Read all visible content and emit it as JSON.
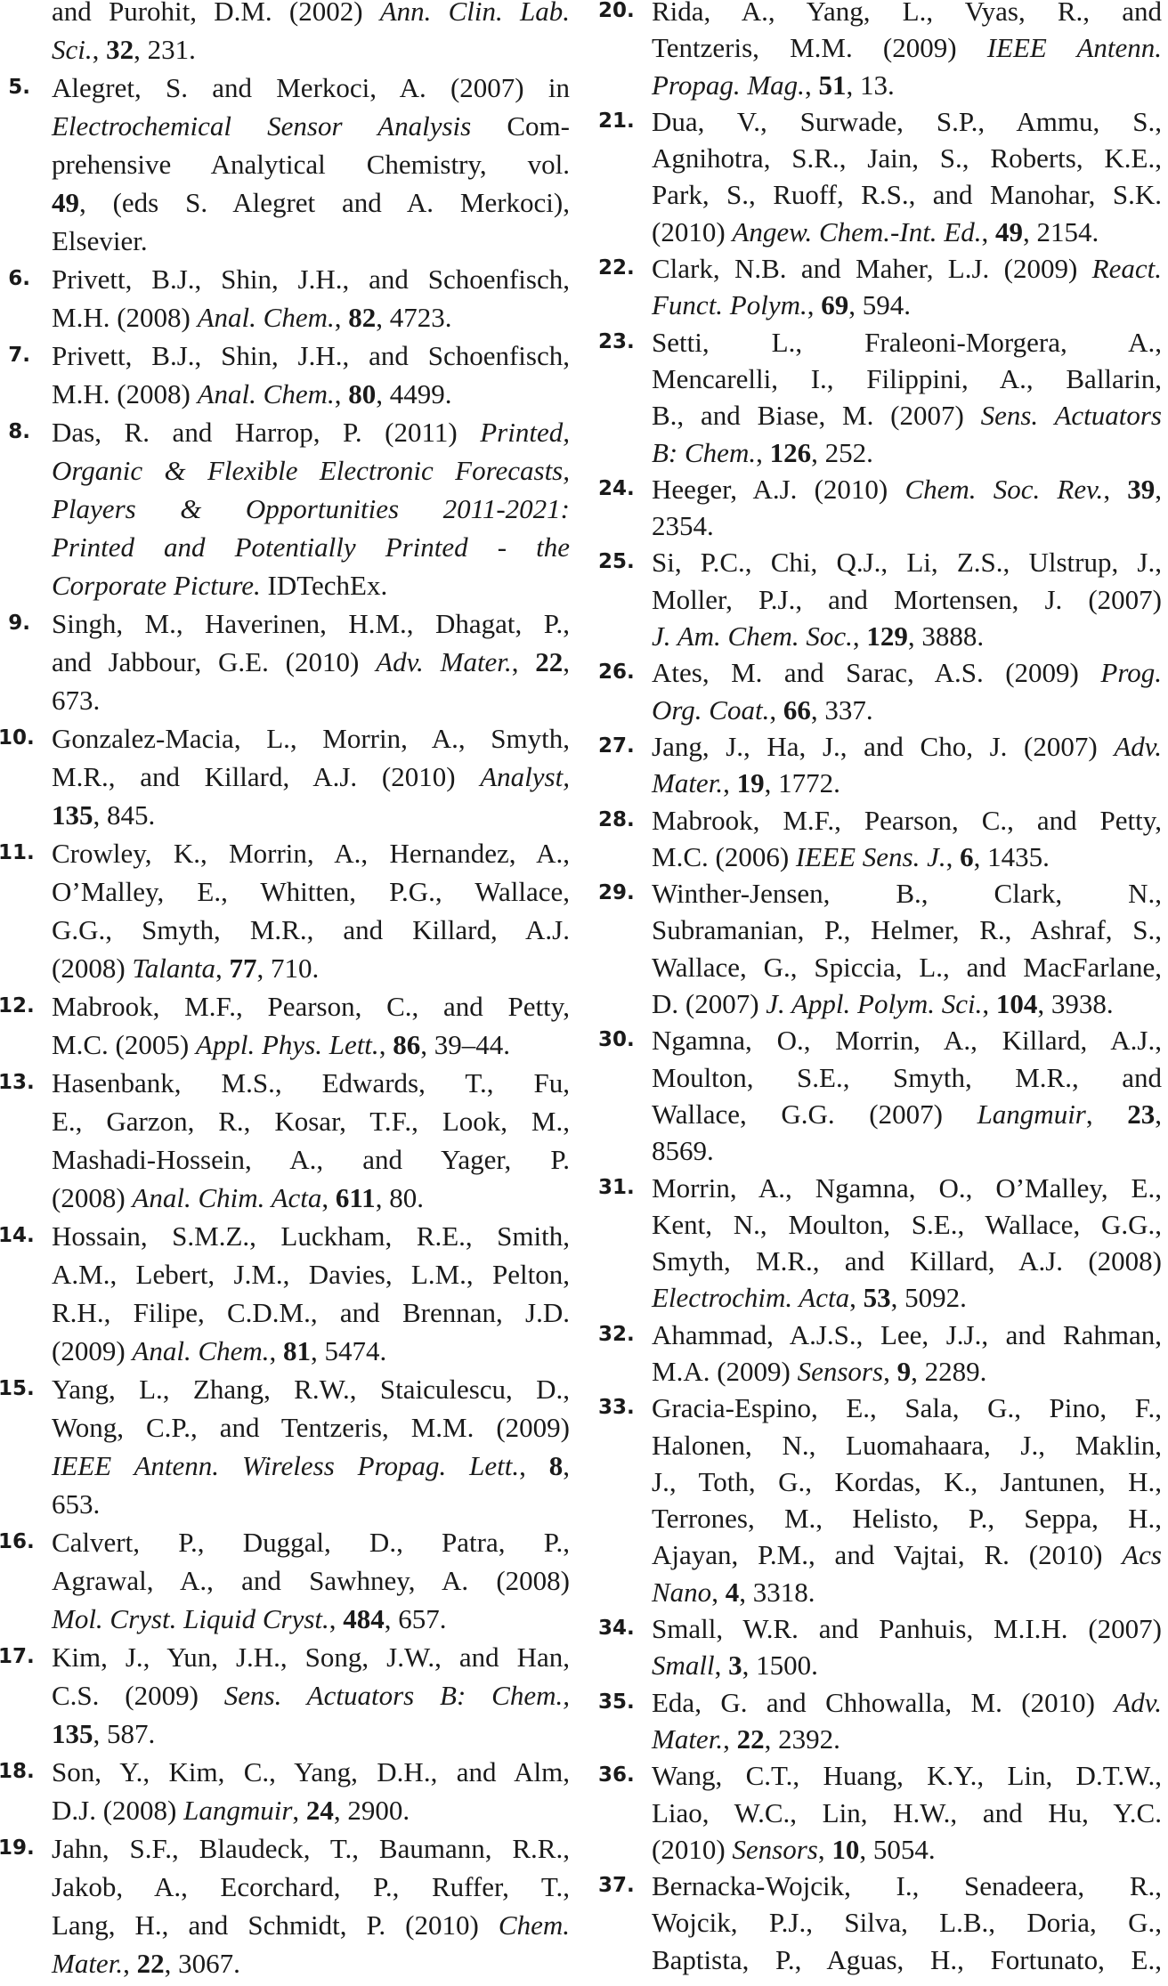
{
  "columns": [
    {
      "refs": [
        {
          "num": "",
          "lines": [
            [
              "and Purohit, D.M. (2002) ",
              [
                "Ann. Clin. Lab.",
                "i"
              ]
            ],
            [
              [
                "Sci.",
                "i"
              ],
              ", ",
              [
                "32",
                "b"
              ],
              ", 231."
            ]
          ]
        },
        {
          "num": "5.",
          "lines": [
            [
              "Alegret, S. and Merkoci, A. (2007) in"
            ],
            [
              [
                "Electrochemical Sensor Analysis",
                "i"
              ],
              " Com-"
            ],
            [
              "prehensive Analytical Chemistry, vol."
            ],
            [
              [
                "49",
                "b"
              ],
              ", (eds S. Alegret and A. Merkoci),"
            ],
            [
              "Elsevier."
            ]
          ]
        },
        {
          "num": "6.",
          "lines": [
            [
              "Privett, B.J., Shin, J.H., and Schoenfisch,"
            ],
            [
              "M.H. (2008) ",
              [
                "Anal. Chem.",
                "i"
              ],
              ", ",
              [
                "82",
                "b"
              ],
              ", 4723."
            ]
          ]
        },
        {
          "num": "7.",
          "lines": [
            [
              "Privett, B.J., Shin, J.H., and Schoenfisch,"
            ],
            [
              "M.H. (2008) ",
              [
                "Anal. Chem.",
                "i"
              ],
              ", ",
              [
                "80",
                "b"
              ],
              ", 4499."
            ]
          ]
        },
        {
          "num": "8.",
          "lines": [
            [
              "Das, R. and Harrop, P. (2011) ",
              [
                "Printed,",
                "i"
              ]
            ],
            [
              [
                "Organic & Flexible Electronic Forecasts,",
                "i"
              ]
            ],
            [
              [
                "Players & Opportunities 2011-2021:",
                "i"
              ]
            ],
            [
              [
                "Printed and Potentially Printed - the",
                "i"
              ]
            ],
            [
              [
                "Corporate Picture.",
                "i"
              ],
              " IDTechEx."
            ]
          ]
        },
        {
          "num": "9.",
          "lines": [
            [
              "Singh, M., Haverinen, H.M., Dhagat, P.,"
            ],
            [
              "and Jabbour, G.E. (2010) ",
              [
                "Adv. Mater.",
                "i"
              ],
              ", ",
              [
                "22",
                "b"
              ],
              ","
            ],
            [
              "673."
            ]
          ]
        },
        {
          "num": "10.",
          "lines": [
            [
              "Gonzalez-Macia, L., Morrin, A., Smyth,"
            ],
            [
              "M.R., and Killard, A.J. (2010) ",
              [
                "Analyst,",
                "i"
              ]
            ],
            [
              [
                "135",
                "b"
              ],
              ", 845."
            ]
          ]
        },
        {
          "num": "11.",
          "lines": [
            [
              "Crowley, K., Morrin, A., Hernandez, A.,"
            ],
            [
              "O’Malley, E., Whitten, P.G., Wallace,"
            ],
            [
              "G.G., Smyth, M.R., and Killard, A.J."
            ],
            [
              "(2008) ",
              [
                "Talanta",
                "i"
              ],
              ", ",
              [
                "77",
                "b"
              ],
              ", 710."
            ]
          ]
        },
        {
          "num": "12.",
          "lines": [
            [
              "Mabrook, M.F., Pearson, C., and Petty,"
            ],
            [
              "M.C. (2005) ",
              [
                "Appl. Phys. Lett.",
                "i"
              ],
              ", ",
              [
                "86",
                "b"
              ],
              ", 39–44."
            ]
          ]
        },
        {
          "num": "13.",
          "lines": [
            [
              "Hasenbank, M.S., Edwards, T., Fu,"
            ],
            [
              "E., Garzon, R., Kosar, T.F., Look, M.,"
            ],
            [
              "Mashadi-Hossein, A., and Yager, P."
            ],
            [
              "(2008) ",
              [
                "Anal. Chim. Acta",
                "i"
              ],
              ", ",
              [
                "611",
                "b"
              ],
              ", 80."
            ]
          ]
        },
        {
          "num": "14.",
          "lines": [
            [
              "Hossain, S.M.Z., Luckham, R.E., Smith,"
            ],
            [
              "A.M., Lebert, J.M., Davies, L.M., Pelton,"
            ],
            [
              "R.H., Filipe, C.D.M., and Brennan, J.D."
            ],
            [
              "(2009) ",
              [
                "Anal. Chem.",
                "i"
              ],
              ", ",
              [
                "81",
                "b"
              ],
              ", 5474."
            ]
          ]
        },
        {
          "num": "15.",
          "lines": [
            [
              "Yang, L., Zhang, R.W., Staiculescu, D.,"
            ],
            [
              "Wong, C.P., and Tentzeris, M.M. (2009)"
            ],
            [
              [
                "IEEE Antenn. Wireless Propag. Lett.",
                "i"
              ],
              ", ",
              [
                "8",
                "b"
              ],
              ","
            ],
            [
              "653."
            ]
          ]
        },
        {
          "num": "16.",
          "lines": [
            [
              "Calvert, P., Duggal, D., Patra, P.,"
            ],
            [
              "Agrawal, A., and Sawhney, A. (2008)"
            ],
            [
              [
                "Mol. Cryst. Liquid Cryst.",
                "i"
              ],
              ", ",
              [
                "484",
                "b"
              ],
              ", 657."
            ]
          ]
        },
        {
          "num": "17.",
          "lines": [
            [
              "Kim, J., Yun, J.H., Song, J.W., and Han,"
            ],
            [
              "C.S. (2009) ",
              [
                "Sens. Actuators B: Chem.,",
                "i"
              ]
            ],
            [
              [
                "135",
                "b"
              ],
              ", 587."
            ]
          ]
        },
        {
          "num": "18.",
          "lines": [
            [
              "Son, Y., Kim, C., Yang, D.H., and Alm,"
            ],
            [
              "D.J. (2008) ",
              [
                "Langmuir",
                "i"
              ],
              ", ",
              [
                "24",
                "b"
              ],
              ", 2900."
            ]
          ]
        },
        {
          "num": "19.",
          "lines": [
            [
              "Jahn, S.F., Blaudeck, T., Baumann, R.R.,"
            ],
            [
              "Jakob, A., Ecorchard, P., Ruffer, T.,"
            ],
            [
              "Lang, H., and Schmidt, P. (2010) ",
              [
                "Chem.",
                "i"
              ]
            ],
            [
              [
                "Mater.",
                "i"
              ],
              ", ",
              [
                "22",
                "b"
              ],
              ", 3067."
            ]
          ]
        }
      ]
    },
    {
      "refs": [
        {
          "num": "20.",
          "lines": [
            [
              "Rida, A., Yang, L., Vyas, R., and"
            ],
            [
              "Tentzeris, M.M. (2009) ",
              [
                "IEEE Antenn.",
                "i"
              ]
            ],
            [
              [
                "Propag. Mag.",
                "i"
              ],
              ", ",
              [
                "51",
                "b"
              ],
              ", 13."
            ]
          ]
        },
        {
          "num": "21.",
          "lines": [
            [
              "Dua, V., Surwade, S.P., Ammu, S.,"
            ],
            [
              "Agnihotra, S.R., Jain, S., Roberts, K.E.,"
            ],
            [
              "Park, S., Ruoff, R.S., and Manohar, S.K."
            ],
            [
              "(2010) ",
              [
                "Angew. Chem.-Int. Ed.",
                "i"
              ],
              ", ",
              [
                "49",
                "b"
              ],
              ", 2154."
            ]
          ]
        },
        {
          "num": "22.",
          "lines": [
            [
              "Clark, N.B. and Maher, L.J. (2009) ",
              [
                "React.",
                "i"
              ]
            ],
            [
              [
                "Funct. Polym.",
                "i"
              ],
              ", ",
              [
                "69",
                "b"
              ],
              ", 594."
            ]
          ]
        },
        {
          "num": "23.",
          "lines": [
            [
              "Setti, L., Fraleoni-Morgera, A.,"
            ],
            [
              "Mencarelli, I., Filippini, A., Ballarin,"
            ],
            [
              "B., and Biase, M. (2007) ",
              [
                "Sens. Actuators",
                "i"
              ]
            ],
            [
              [
                "B: Chem.",
                "i"
              ],
              ", ",
              [
                "126",
                "b"
              ],
              ", 252."
            ]
          ]
        },
        {
          "num": "24.",
          "lines": [
            [
              "Heeger, A.J. (2010) ",
              [
                "Chem. Soc. Rev.",
                "i"
              ],
              ", ",
              [
                "39",
                "b"
              ],
              ","
            ],
            [
              "2354."
            ]
          ]
        },
        {
          "num": "25.",
          "lines": [
            [
              "Si, P.C., Chi, Q.J., Li, Z.S., Ulstrup, J.,"
            ],
            [
              "Moller, P.J., and Mortensen, J. (2007)"
            ],
            [
              [
                "J. Am. Chem. Soc.",
                "i"
              ],
              ", ",
              [
                "129",
                "b"
              ],
              ", 3888."
            ]
          ]
        },
        {
          "num": "26.",
          "lines": [
            [
              "Ates, M. and Sarac, A.S. (2009) ",
              [
                "Prog.",
                "i"
              ]
            ],
            [
              [
                "Org. Coat.",
                "i"
              ],
              ", ",
              [
                "66",
                "b"
              ],
              ", 337."
            ]
          ]
        },
        {
          "num": "27.",
          "lines": [
            [
              "Jang, J., Ha, J., and Cho, J. (2007) ",
              [
                "Adv.",
                "i"
              ]
            ],
            [
              [
                "Mater.",
                "i"
              ],
              ", ",
              [
                "19",
                "b"
              ],
              ", 1772."
            ]
          ]
        },
        {
          "num": "28.",
          "lines": [
            [
              "Mabrook, M.F., Pearson, C., and Petty,"
            ],
            [
              "M.C. (2006) ",
              [
                "IEEE Sens. J.",
                "i"
              ],
              ", ",
              [
                "6",
                "b"
              ],
              ", 1435."
            ]
          ]
        },
        {
          "num": "29.",
          "lines": [
            [
              "Winther-Jensen, B., Clark, N.,"
            ],
            [
              "Subramanian, P., Helmer, R., Ashraf, S.,"
            ],
            [
              "Wallace, G., Spiccia, L., and MacFarlane,"
            ],
            [
              "D. (2007) ",
              [
                "J. Appl. Polym. Sci.",
                "i"
              ],
              ", ",
              [
                "104",
                "b"
              ],
              ", 3938."
            ]
          ]
        },
        {
          "num": "30.",
          "lines": [
            [
              "Ngamna, O., Morrin, A., Killard, A.J.,"
            ],
            [
              "Moulton, S.E., Smyth, M.R., and"
            ],
            [
              "Wallace, G.G. (2007) ",
              [
                "Langmuir",
                "i"
              ],
              ", ",
              [
                "23",
                "b"
              ],
              ","
            ],
            [
              "8569."
            ]
          ]
        },
        {
          "num": "31.",
          "lines": [
            [
              "Morrin, A., Ngamna, O., O’Malley, E.,"
            ],
            [
              "Kent, N., Moulton, S.E., Wallace, G.G.,"
            ],
            [
              "Smyth, M.R., and Killard, A.J. (2008)"
            ],
            [
              [
                "Electrochim. Acta",
                "i"
              ],
              ", ",
              [
                "53",
                "b"
              ],
              ", 5092."
            ]
          ]
        },
        {
          "num": "32.",
          "lines": [
            [
              "Ahammad, A.J.S., Lee, J.J., and Rahman,"
            ],
            [
              "M.A. (2009) ",
              [
                "Sensors",
                "i"
              ],
              ", ",
              [
                "9",
                "b"
              ],
              ", 2289."
            ]
          ]
        },
        {
          "num": "33.",
          "lines": [
            [
              "Gracia-Espino, E., Sala, G., Pino, F.,"
            ],
            [
              "Halonen, N., Luomahaara, J., Maklin,"
            ],
            [
              "J., Toth, G., Kordas, K., Jantunen, H.,"
            ],
            [
              "Terrones, M., Helisto, P., Seppa, H.,"
            ],
            [
              "Ajayan, P.M., and Vajtai, R. (2010) ",
              [
                "Acs",
                "i"
              ]
            ],
            [
              [
                "Nano",
                "i"
              ],
              ", ",
              [
                "4",
                "b"
              ],
              ", 3318."
            ]
          ]
        },
        {
          "num": "34.",
          "lines": [
            [
              "Small, W.R. and Panhuis, M.I.H. (2007)"
            ],
            [
              [
                "Small",
                "i"
              ],
              ", ",
              [
                "3",
                "b"
              ],
              ", 1500."
            ]
          ]
        },
        {
          "num": "35.",
          "lines": [
            [
              "Eda, G. and Chhowalla, M. (2010) ",
              [
                "Adv.",
                "i"
              ]
            ],
            [
              [
                "Mater.",
                "i"
              ],
              ", ",
              [
                "22",
                "b"
              ],
              ", 2392."
            ]
          ]
        },
        {
          "num": "36.",
          "lines": [
            [
              "Wang, C.T., Huang, K.Y., Lin, D.T.W.,"
            ],
            [
              "Liao, W.C., Lin, H.W., and Hu, Y.C."
            ],
            [
              "(2010) ",
              [
                "Sensors",
                "i"
              ],
              ", ",
              [
                "10",
                "b"
              ],
              ", 5054."
            ]
          ]
        },
        {
          "num": "37.",
          "continues": true,
          "lines": [
            [
              "Bernacka-Wojcik, I., Senadeera, R.,"
            ],
            [
              "Wojcik, P.J., Silva, L.B., Doria, G.,"
            ],
            [
              "Baptista, P., Aguas, H., Fortunato, E.,"
            ]
          ]
        }
      ]
    }
  ]
}
